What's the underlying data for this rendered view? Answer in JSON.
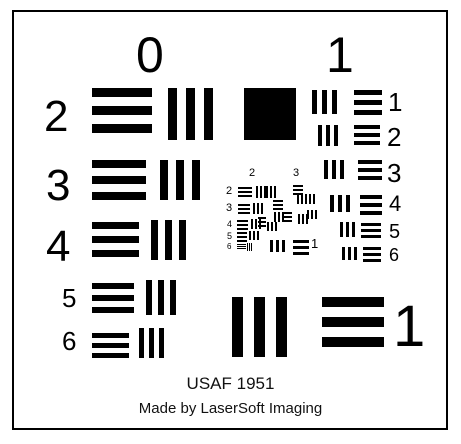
{
  "chart_title": "USAF 1951",
  "credit": "Made by LaserSoft Imaging",
  "group_labels": {
    "top_left": "0",
    "top_right": "1"
  },
  "left_numbers": [
    "2",
    "3",
    "4",
    "5",
    "6"
  ],
  "right_numbers": [
    "1",
    "2",
    "3",
    "4",
    "5",
    "6"
  ],
  "bottom_right_number": "1",
  "center_labels": {
    "top_left": "2",
    "top_right": "3",
    "rows": [
      "2",
      "3",
      "4",
      "5",
      "6"
    ],
    "inner_right": "1"
  },
  "colors": {
    "ink": "#000000",
    "paper": "#ffffff"
  }
}
